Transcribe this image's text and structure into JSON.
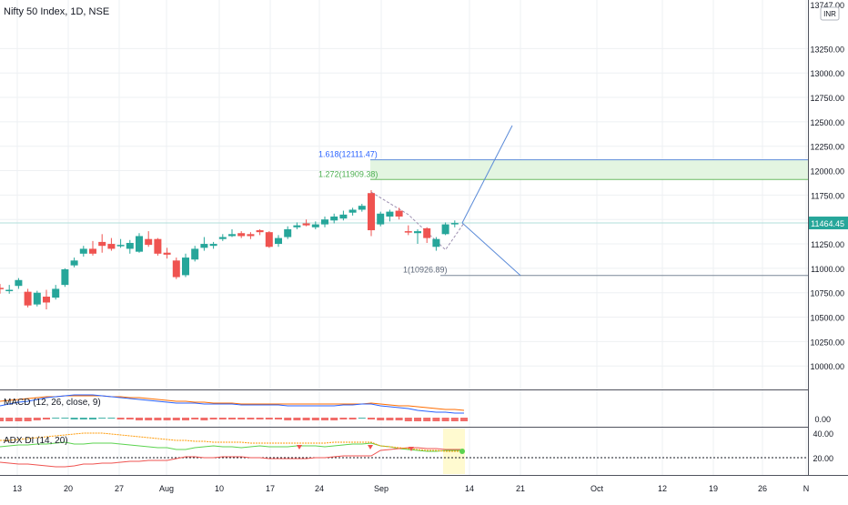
{
  "chart_data": {
    "type": "candlestick",
    "title": "Nifty 50 Index, 1D, NSE",
    "currency_badge": "INR",
    "colors": {
      "up": "#26a69a",
      "down": "#ef5350",
      "grid": "#eef0f3",
      "fib_fill": "#e3f5e1",
      "fib_line_1618": "#5b8bd8",
      "fib_line_1272": "#6cbc63",
      "macd": "#2962ff",
      "signal": "#ff6d00",
      "adx_plus": "#5bd34f",
      "adx_minus": "#ef5350",
      "adx": "#ff9800"
    },
    "price_axis": {
      "ticks": [
        "13747.00",
        "13250.00",
        "13000.00",
        "12750.00",
        "12500.00",
        "12250.00",
        "12000.00",
        "11750.00",
        "11500.00",
        "11250.00",
        "11000.00",
        "10750.00",
        "10500.00",
        "10250.00",
        "10000.00"
      ],
      "range": [
        9760,
        13747
      ],
      "last_price_label": "11464.45"
    },
    "x_axis": {
      "labels": [
        "13",
        "20",
        "27",
        "Aug",
        "10",
        "17",
        "24",
        "Sep",
        "14",
        "21",
        "Oct",
        "12",
        "19",
        "26",
        "N"
      ]
    },
    "candles": [
      {
        "o": 10800,
        "h": 10840,
        "l": 10740,
        "c": 10790
      },
      {
        "o": 10770,
        "h": 10830,
        "l": 10740,
        "c": 10780
      },
      {
        "o": 10820,
        "h": 10900,
        "l": 10790,
        "c": 10880
      },
      {
        "o": 10760,
        "h": 10790,
        "l": 10600,
        "c": 10620
      },
      {
        "o": 10630,
        "h": 10770,
        "l": 10610,
        "c": 10750
      },
      {
        "o": 10710,
        "h": 10780,
        "l": 10580,
        "c": 10650
      },
      {
        "o": 10700,
        "h": 10830,
        "l": 10680,
        "c": 10790
      },
      {
        "o": 10830,
        "h": 11000,
        "l": 10810,
        "c": 10990
      },
      {
        "o": 11030,
        "h": 11110,
        "l": 11010,
        "c": 11080
      },
      {
        "o": 11150,
        "h": 11230,
        "l": 11120,
        "c": 11200
      },
      {
        "o": 11200,
        "h": 11280,
        "l": 11130,
        "c": 11150
      },
      {
        "o": 11270,
        "h": 11350,
        "l": 11160,
        "c": 11230
      },
      {
        "o": 11250,
        "h": 11310,
        "l": 11180,
        "c": 11200
      },
      {
        "o": 11240,
        "h": 11300,
        "l": 11210,
        "c": 11240
      },
      {
        "o": 11200,
        "h": 11290,
        "l": 11150,
        "c": 11260
      },
      {
        "o": 11170,
        "h": 11360,
        "l": 11160,
        "c": 11330
      },
      {
        "o": 11300,
        "h": 11380,
        "l": 11220,
        "c": 11240
      },
      {
        "o": 11300,
        "h": 11310,
        "l": 11130,
        "c": 11150
      },
      {
        "o": 11160,
        "h": 11210,
        "l": 11100,
        "c": 11140
      },
      {
        "o": 11080,
        "h": 11110,
        "l": 10890,
        "c": 10910
      },
      {
        "o": 10930,
        "h": 11150,
        "l": 10910,
        "c": 11110
      },
      {
        "o": 11090,
        "h": 11230,
        "l": 11070,
        "c": 11200
      },
      {
        "o": 11210,
        "h": 11320,
        "l": 11180,
        "c": 11250
      },
      {
        "o": 11230,
        "h": 11270,
        "l": 11200,
        "c": 11250
      },
      {
        "o": 11300,
        "h": 11350,
        "l": 11280,
        "c": 11320
      },
      {
        "o": 11330,
        "h": 11400,
        "l": 11320,
        "c": 11350
      },
      {
        "o": 11360,
        "h": 11380,
        "l": 11310,
        "c": 11330
      },
      {
        "o": 11350,
        "h": 11370,
        "l": 11300,
        "c": 11330
      },
      {
        "o": 11390,
        "h": 11400,
        "l": 11340,
        "c": 11370
      },
      {
        "o": 11370,
        "h": 11380,
        "l": 11210,
        "c": 11220
      },
      {
        "o": 11250,
        "h": 11340,
        "l": 11220,
        "c": 11310
      },
      {
        "o": 11320,
        "h": 11430,
        "l": 11300,
        "c": 11400
      },
      {
        "o": 11420,
        "h": 11470,
        "l": 11400,
        "c": 11440
      },
      {
        "o": 11460,
        "h": 11500,
        "l": 11430,
        "c": 11440
      },
      {
        "o": 11420,
        "h": 11480,
        "l": 11400,
        "c": 11450
      },
      {
        "o": 11450,
        "h": 11530,
        "l": 11420,
        "c": 11500
      },
      {
        "o": 11490,
        "h": 11560,
        "l": 11460,
        "c": 11530
      },
      {
        "o": 11510,
        "h": 11590,
        "l": 11490,
        "c": 11550
      },
      {
        "o": 11570,
        "h": 11620,
        "l": 11540,
        "c": 11600
      },
      {
        "o": 11600,
        "h": 11660,
        "l": 11580,
        "c": 11640
      },
      {
        "o": 11770,
        "h": 11800,
        "l": 11330,
        "c": 11390
      },
      {
        "o": 11450,
        "h": 11580,
        "l": 11430,
        "c": 11560
      },
      {
        "o": 11530,
        "h": 11600,
        "l": 11480,
        "c": 11580
      },
      {
        "o": 11590,
        "h": 11620,
        "l": 11500,
        "c": 11530
      },
      {
        "o": 11380,
        "h": 11440,
        "l": 11340,
        "c": 11370
      },
      {
        "o": 11360,
        "h": 11400,
        "l": 11250,
        "c": 11380
      },
      {
        "o": 11410,
        "h": 11420,
        "l": 11260,
        "c": 11310
      },
      {
        "o": 11220,
        "h": 11320,
        "l": 11180,
        "c": 11300
      },
      {
        "o": 11350,
        "h": 11470,
        "l": 11340,
        "c": 11450
      },
      {
        "o": 11450,
        "h": 11490,
        "l": 11420,
        "c": 11464
      }
    ],
    "fibonacci": {
      "levels": [
        {
          "ratio_label": "1.618(12111.47)",
          "price": 12111.47
        },
        {
          "ratio_label": "1.272(11909.38)",
          "price": 11909.38
        },
        {
          "ratio_label": "1(10926.89)",
          "price": 10926.89
        }
      ]
    },
    "indicators": {
      "macd": {
        "label": "MACD (12, 26, close, 9)",
        "axis_tick": "0.00"
      },
      "adx": {
        "label": "ADX DI (14, 20)",
        "axis_ticks": [
          "40.00",
          "20.00"
        ]
      }
    }
  }
}
